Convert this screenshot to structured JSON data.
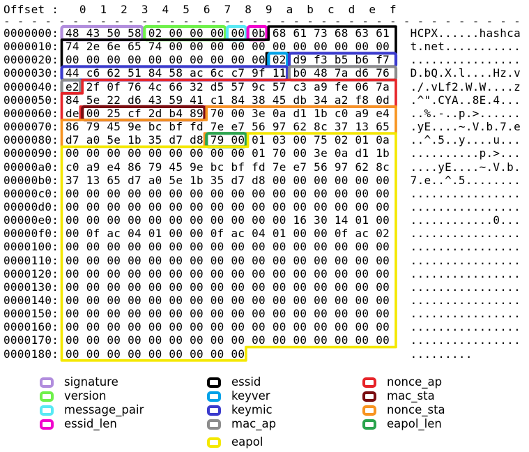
{
  "header": {
    "offset_label": "Offset :",
    "columns": [
      "0",
      "1",
      "2",
      "3",
      "4",
      "5",
      "6",
      "7",
      "8",
      "9",
      "a",
      "b",
      "c",
      "d",
      "e",
      "f"
    ],
    "separator_dash": "- "
  },
  "hexdump": {
    "offsets": [
      "0000000:",
      "0000010:",
      "0000020:",
      "0000030:",
      "0000040:",
      "0000050:",
      "0000060:",
      "0000070:",
      "0000080:",
      "0000090:",
      "00000a0:",
      "00000b0:",
      "00000c0:",
      "00000d0:",
      "00000e0:",
      "00000f0:",
      "0000100:",
      "0000110:",
      "0000120:",
      "0000130:",
      "0000140:",
      "0000150:",
      "0000160:",
      "0000170:",
      "0000180:"
    ],
    "rows": [
      [
        "48",
        "43",
        "50",
        "58",
        "02",
        "00",
        "00",
        "00",
        "00",
        "0b",
        "68",
        "61",
        "73",
        "68",
        "63",
        "61"
      ],
      [
        "74",
        "2e",
        "6e",
        "65",
        "74",
        "00",
        "00",
        "00",
        "00",
        "00",
        "00",
        "00",
        "00",
        "00",
        "00",
        "00"
      ],
      [
        "00",
        "00",
        "00",
        "00",
        "00",
        "00",
        "00",
        "00",
        "00",
        "00",
        "02",
        "d9",
        "f3",
        "b5",
        "b6",
        "f7"
      ],
      [
        "44",
        "c6",
        "62",
        "51",
        "84",
        "58",
        "ac",
        "6c",
        "c7",
        "9f",
        "11",
        "b0",
        "48",
        "7a",
        "d6",
        "76"
      ],
      [
        "e2",
        "2f",
        "0f",
        "76",
        "4c",
        "66",
        "32",
        "d5",
        "57",
        "9c",
        "57",
        "c3",
        "a9",
        "fe",
        "06",
        "7a"
      ],
      [
        "84",
        "5e",
        "22",
        "d6",
        "43",
        "59",
        "41",
        "c1",
        "84",
        "38",
        "45",
        "db",
        "34",
        "a2",
        "f8",
        "0d"
      ],
      [
        "de",
        "00",
        "25",
        "cf",
        "2d",
        "b4",
        "89",
        "70",
        "00",
        "3e",
        "0a",
        "d1",
        "1b",
        "c0",
        "a9",
        "e4"
      ],
      [
        "86",
        "79",
        "45",
        "9e",
        "bc",
        "bf",
        "fd",
        "7e",
        "e7",
        "56",
        "97",
        "62",
        "8c",
        "37",
        "13",
        "65"
      ],
      [
        "d7",
        "a0",
        "5e",
        "1b",
        "35",
        "d7",
        "d8",
        "79",
        "00",
        "01",
        "03",
        "00",
        "75",
        "02",
        "01",
        "0a"
      ],
      [
        "00",
        "00",
        "00",
        "00",
        "00",
        "00",
        "00",
        "00",
        "00",
        "01",
        "70",
        "00",
        "3e",
        "0a",
        "d1",
        "1b"
      ],
      [
        "c0",
        "a9",
        "e4",
        "86",
        "79",
        "45",
        "9e",
        "bc",
        "bf",
        "fd",
        "7e",
        "e7",
        "56",
        "97",
        "62",
        "8c"
      ],
      [
        "37",
        "13",
        "65",
        "d7",
        "a0",
        "5e",
        "1b",
        "35",
        "d7",
        "d8",
        "00",
        "00",
        "00",
        "00",
        "00",
        "00"
      ],
      [
        "00",
        "00",
        "00",
        "00",
        "00",
        "00",
        "00",
        "00",
        "00",
        "00",
        "00",
        "00",
        "00",
        "00",
        "00",
        "00"
      ],
      [
        "00",
        "00",
        "00",
        "00",
        "00",
        "00",
        "00",
        "00",
        "00",
        "00",
        "00",
        "00",
        "00",
        "00",
        "00",
        "00"
      ],
      [
        "00",
        "00",
        "00",
        "00",
        "00",
        "00",
        "00",
        "00",
        "00",
        "00",
        "00",
        "16",
        "30",
        "14",
        "01",
        "00"
      ],
      [
        "00",
        "0f",
        "ac",
        "04",
        "01",
        "00",
        "00",
        "0f",
        "ac",
        "04",
        "01",
        "00",
        "00",
        "0f",
        "ac",
        "02"
      ],
      [
        "00",
        "00",
        "00",
        "00",
        "00",
        "00",
        "00",
        "00",
        "00",
        "00",
        "00",
        "00",
        "00",
        "00",
        "00",
        "00"
      ],
      [
        "00",
        "00",
        "00",
        "00",
        "00",
        "00",
        "00",
        "00",
        "00",
        "00",
        "00",
        "00",
        "00",
        "00",
        "00",
        "00"
      ],
      [
        "00",
        "00",
        "00",
        "00",
        "00",
        "00",
        "00",
        "00",
        "00",
        "00",
        "00",
        "00",
        "00",
        "00",
        "00",
        "00"
      ],
      [
        "00",
        "00",
        "00",
        "00",
        "00",
        "00",
        "00",
        "00",
        "00",
        "00",
        "00",
        "00",
        "00",
        "00",
        "00",
        "00"
      ],
      [
        "00",
        "00",
        "00",
        "00",
        "00",
        "00",
        "00",
        "00",
        "00",
        "00",
        "00",
        "00",
        "00",
        "00",
        "00",
        "00"
      ],
      [
        "00",
        "00",
        "00",
        "00",
        "00",
        "00",
        "00",
        "00",
        "00",
        "00",
        "00",
        "00",
        "00",
        "00",
        "00",
        "00"
      ],
      [
        "00",
        "00",
        "00",
        "00",
        "00",
        "00",
        "00",
        "00",
        "00",
        "00",
        "00",
        "00",
        "00",
        "00",
        "00",
        "00"
      ],
      [
        "00",
        "00",
        "00",
        "00",
        "00",
        "00",
        "00",
        "00",
        "00",
        "00",
        "00",
        "00",
        "00",
        "00",
        "00",
        "00"
      ],
      [
        "00",
        "00",
        "00",
        "00",
        "00",
        "00",
        "00",
        "00",
        "00"
      ]
    ],
    "ascii": [
      "HCPX......hashca",
      "t.net...........",
      "................",
      "D.bQ.X.l....Hz.v",
      "./.vLf2.W.W....z",
      ".^\".CYA..8E.4...",
      "..%.-..p.>......",
      ".yE....~.V.b.7.e",
      "..^.5..y....u...",
      "..........p.>...",
      "....yE....~.V.b.",
      "7.e..^.5........",
      "................",
      "................",
      "............0...",
      "................",
      "................",
      "................",
      "................",
      "................",
      "................",
      "................",
      "................",
      "................",
      "........."
    ]
  },
  "fields": [
    {
      "name": "signature",
      "color": "#b18ddd",
      "start": 0,
      "end": 3
    },
    {
      "name": "version",
      "color": "#6ff04b",
      "start": 4,
      "end": 7
    },
    {
      "name": "message_pair",
      "color": "#59e9f4",
      "start": 8,
      "end": 8
    },
    {
      "name": "essid_len",
      "color": "#f104cd",
      "start": 9,
      "end": 9
    },
    {
      "name": "essid",
      "color": "#000000",
      "start": 10,
      "end": 41
    },
    {
      "name": "keyver",
      "color": "#00a1e8",
      "start": 42,
      "end": 42
    },
    {
      "name": "keymic",
      "color": "#3b3bcd",
      "start": 43,
      "end": 58
    },
    {
      "name": "mac_ap",
      "color": "#8c8c8c",
      "start": 59,
      "end": 64
    },
    {
      "name": "nonce_ap",
      "color": "#e62429",
      "start": 65,
      "end": 96
    },
    {
      "name": "mac_sta",
      "color": "#7b0d12",
      "start": 97,
      "end": 102
    },
    {
      "name": "nonce_sta",
      "color": "#f79421",
      "start": 103,
      "end": 134
    },
    {
      "name": "eapol_len",
      "color": "#2ba44e",
      "start": 135,
      "end": 136
    },
    {
      "name": "eapol",
      "color": "#f4e800",
      "start": 137,
      "end": 392
    }
  ],
  "legend": {
    "columns": [
      [
        "signature",
        "version",
        "message_pair",
        "essid_len"
      ],
      [
        "essid",
        "keyver",
        "keymic",
        "mac_ap",
        "eapol"
      ],
      [
        "nonce_ap",
        "mac_sta",
        "nonce_sta",
        "eapol_len"
      ]
    ]
  }
}
